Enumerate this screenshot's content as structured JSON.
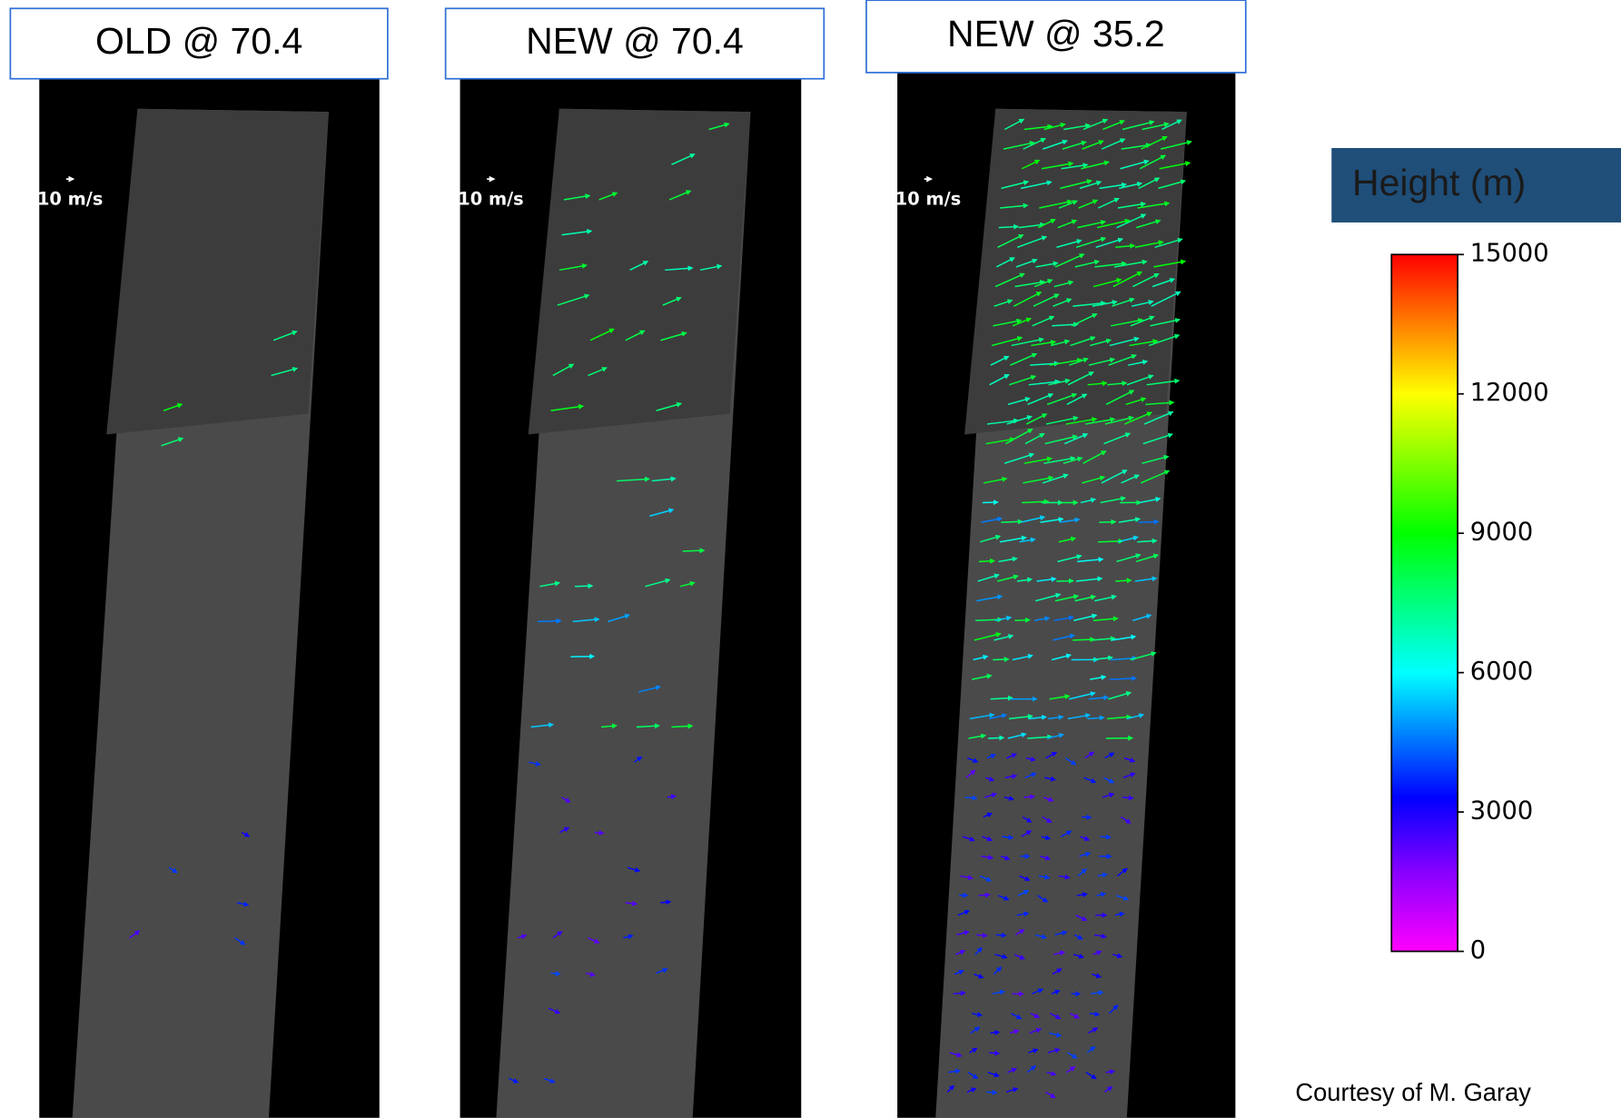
{
  "panels": [
    {
      "title": "OLD @ 70.4",
      "scale_label": "10 m/s"
    },
    {
      "title": "NEW @ 70.4",
      "scale_label": "10 m/s"
    },
    {
      "title": "NEW @ 35.2",
      "scale_label": "10 m/s"
    }
  ],
  "colorbar": {
    "title": "Height (m)",
    "ylim": [
      0,
      15000
    ],
    "yticks": [
      0,
      3000,
      6000,
      9000,
      12000,
      15000
    ]
  },
  "credit": "Courtesy of M. Garay"
}
